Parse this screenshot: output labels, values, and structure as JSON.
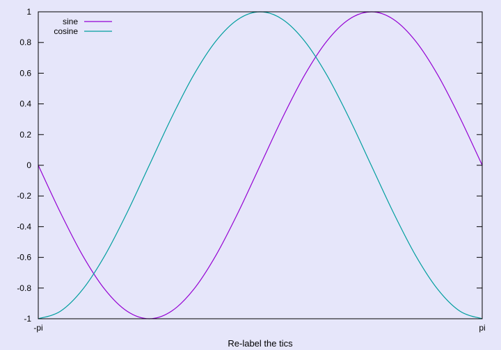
{
  "chart_data": {
    "type": "line",
    "title": "",
    "xlabel": "Re-label the tics",
    "ylabel": "",
    "xlim": [
      -3.14159,
      3.14159
    ],
    "ylim": [
      -1,
      1
    ],
    "xticks": [
      {
        "value": -3.14159,
        "label": "-pi"
      },
      {
        "value": 3.14159,
        "label": "pi"
      }
    ],
    "yticks": [
      {
        "value": -1,
        "label": "-1"
      },
      {
        "value": -0.8,
        "label": "-0.8"
      },
      {
        "value": -0.6,
        "label": "-0.6"
      },
      {
        "value": -0.4,
        "label": "-0.4"
      },
      {
        "value": -0.2,
        "label": "-0.2"
      },
      {
        "value": 0,
        "label": "0"
      },
      {
        "value": 0.2,
        "label": "0.2"
      },
      {
        "value": 0.4,
        "label": "0.4"
      },
      {
        "value": 0.6,
        "label": "0.6"
      },
      {
        "value": 0.8,
        "label": "0.8"
      },
      {
        "value": 1,
        "label": "1"
      }
    ],
    "grid": false,
    "legend_position": "top-left",
    "series": [
      {
        "name": "sine",
        "color": "#9400d3",
        "x": [
          -3.14159,
          -2.82743,
          -2.51327,
          -2.19911,
          -1.88496,
          -1.5708,
          -1.25664,
          -0.94248,
          -0.62832,
          -0.31416,
          0,
          0.31416,
          0.62832,
          0.94248,
          1.25664,
          1.5708,
          1.88496,
          2.19911,
          2.51327,
          2.82743,
          3.14159
        ],
        "y": [
          0,
          -0.309,
          -0.588,
          -0.809,
          -0.951,
          -1,
          -0.951,
          -0.809,
          -0.588,
          -0.309,
          0,
          0.309,
          0.588,
          0.809,
          0.951,
          1,
          0.951,
          0.809,
          0.588,
          0.309,
          0
        ]
      },
      {
        "name": "cosine",
        "color": "#009e9e",
        "x": [
          -3.14159,
          -2.82743,
          -2.51327,
          -2.19911,
          -1.88496,
          -1.5708,
          -1.25664,
          -0.94248,
          -0.62832,
          -0.31416,
          0,
          0.31416,
          0.62832,
          0.94248,
          1.25664,
          1.5708,
          1.88496,
          2.19911,
          2.51327,
          2.82743,
          3.14159
        ],
        "y": [
          -1,
          -0.951,
          -0.809,
          -0.588,
          -0.309,
          0,
          0.309,
          0.588,
          0.809,
          0.951,
          1,
          0.951,
          0.809,
          0.588,
          0.309,
          0,
          -0.309,
          -0.588,
          -0.809,
          -0.951,
          -1
        ]
      }
    ]
  }
}
